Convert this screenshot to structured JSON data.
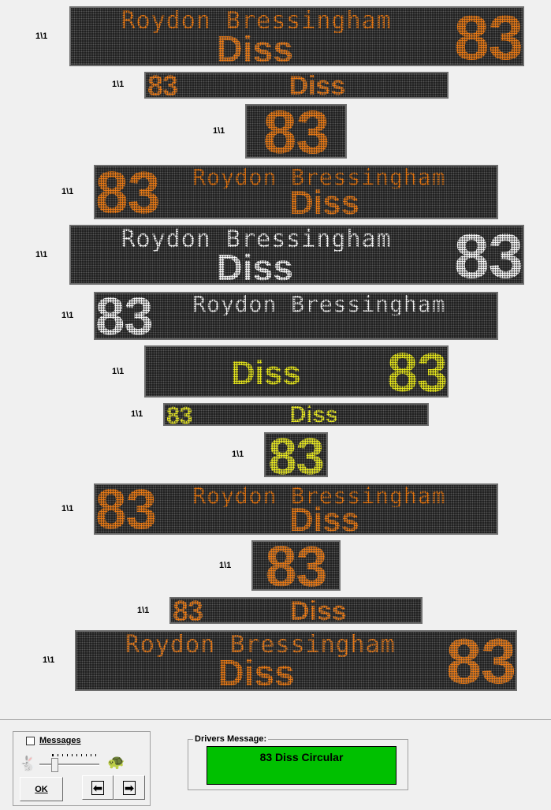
{
  "signs": [
    {
      "label": "1\\1",
      "number": "83",
      "via": "Roydon Bressingham",
      "destination": "Diss",
      "color": "#f07c14"
    },
    {
      "label": "1\\1",
      "number": "83",
      "via": "",
      "destination": "Diss",
      "color": "#f07c14"
    },
    {
      "label": "1\\1",
      "number": "83",
      "via": "",
      "destination": "",
      "color": "#f07c14"
    },
    {
      "label": "1\\1",
      "number": "83",
      "via": "Roydon Bressingham",
      "destination": "Diss",
      "color": "#f07c14"
    },
    {
      "label": "1\\1",
      "number": "83",
      "via": "Roydon Bressingham",
      "destination": "Diss",
      "color": "#ffffff"
    },
    {
      "label": "1\\1",
      "number": "83",
      "via": "Roydon Bressingham",
      "destination": "",
      "color": "#ffffff"
    },
    {
      "label": "1\\1",
      "number": "83",
      "via": "",
      "destination": "Diss",
      "color": "#f0f020"
    },
    {
      "label": "1\\1",
      "number": "83",
      "via": "",
      "destination": "Diss",
      "color": "#f0f020"
    },
    {
      "label": "1\\1",
      "number": "83",
      "via": "",
      "destination": "",
      "color": "#f0f020"
    },
    {
      "label": "1\\1",
      "number": "83",
      "via": "Roydon Bressingham",
      "destination": "Diss",
      "color": "#f07c14"
    },
    {
      "label": "1\\1",
      "number": "83",
      "via": "",
      "destination": "",
      "color": "#f07c14"
    },
    {
      "label": "1\\1",
      "number": "83",
      "via": "",
      "destination": "Diss",
      "color": "#f07c14"
    },
    {
      "label": "1\\1",
      "number": "83",
      "via": "Roydon Bressingham",
      "destination": "Diss",
      "color": "#f07c14"
    }
  ],
  "controls": {
    "messages_label": "Messages",
    "messages_checked": false,
    "ok_label": "OK",
    "speed_level": 0.1,
    "prev_icon": "arrow-left-icon",
    "next_icon": "arrow-right-icon",
    "fast_icon": "hare-icon",
    "slow_icon": "tortoise-icon"
  },
  "drivers": {
    "title": "Drivers Message:",
    "message": "83 Diss Circular",
    "color": "#00c000"
  }
}
